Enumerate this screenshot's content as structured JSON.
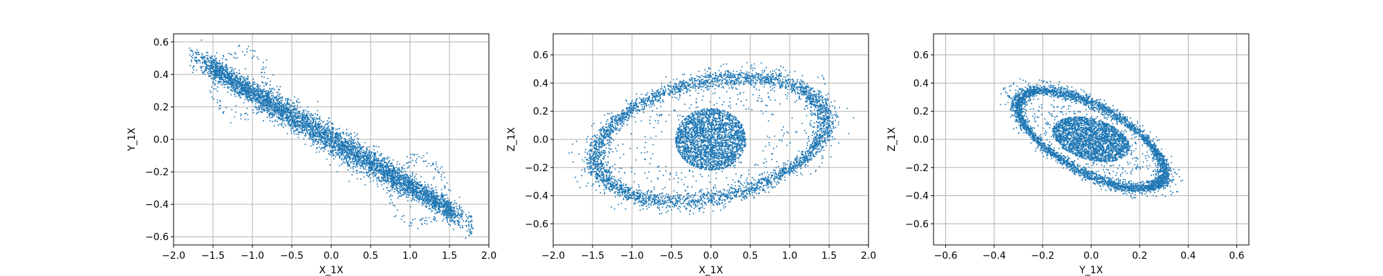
{
  "chart_data": [
    {
      "type": "scatter",
      "xlabel": "X_1X",
      "ylabel": "Y_1X",
      "xlim": [
        -2.0,
        2.0
      ],
      "ylim": [
        -0.65,
        0.65
      ],
      "xticks": [
        "−2.0",
        "−1.5",
        "−1.0",
        "−0.5",
        "0.0",
        "0.5",
        "1.0",
        "1.5",
        "2.0"
      ],
      "xtick_values": [
        -2.0,
        -1.5,
        -1.0,
        -0.5,
        0.0,
        0.5,
        1.0,
        1.5,
        2.0
      ],
      "yticks": [
        "−0.6",
        "−0.4",
        "−0.2",
        "0.0",
        "0.2",
        "0.4",
        "0.6"
      ],
      "ytick_values": [
        -0.6,
        -0.4,
        -0.2,
        0.0,
        0.2,
        0.4,
        0.6
      ],
      "grid": true,
      "color": "#1f77b4",
      "structure": "elongated diagonal band from (-1.8, 0.52) to (1.8, -0.53), dense core near origin",
      "outline_points": [
        [
          -1.8,
          0.52
        ],
        [
          -1.3,
          0.38
        ],
        [
          -0.5,
          0.12
        ],
        [
          0.0,
          0.0
        ],
        [
          0.5,
          -0.12
        ],
        [
          1.0,
          -0.27
        ],
        [
          1.5,
          -0.42
        ],
        [
          1.8,
          -0.53
        ]
      ]
    },
    {
      "type": "scatter",
      "xlabel": "X_1X",
      "ylabel": "Z_1X",
      "xlim": [
        -2.0,
        2.0
      ],
      "ylim": [
        -0.75,
        0.75
      ],
      "xticks": [
        "−2.0",
        "−1.5",
        "−1.0",
        "−0.5",
        "0.0",
        "0.5",
        "1.0",
        "1.5",
        "2.0"
      ],
      "xtick_values": [
        -2.0,
        -1.5,
        -1.0,
        -0.5,
        0.0,
        0.5,
        1.0,
        1.5,
        2.0
      ],
      "yticks": [
        "−0.6",
        "−0.4",
        "−0.2",
        "0.0",
        "0.2",
        "0.4",
        "0.6"
      ],
      "ytick_values": [
        -0.6,
        -0.4,
        -0.2,
        0.0,
        0.2,
        0.4,
        0.6
      ],
      "grid": true,
      "color": "#1f77b4",
      "structure": "tilted elliptical ring around a dense central disk",
      "ring": {
        "center": [
          0.0,
          0.0
        ],
        "semi_axis_x": 1.45,
        "semi_axis_y": 0.42,
        "tilt": 0.2
      },
      "core": {
        "center": [
          0.0,
          0.0
        ],
        "radius_x": 0.45,
        "radius_y": 0.22
      }
    },
    {
      "type": "scatter",
      "xlabel": "Y_1X",
      "ylabel": "Z_1X",
      "xlim": [
        -0.65,
        0.65
      ],
      "ylim": [
        -0.75,
        0.75
      ],
      "xticks": [
        "−0.6",
        "−0.4",
        "−0.2",
        "0.0",
        "0.2",
        "0.4",
        "0.6"
      ],
      "xtick_values": [
        -0.6,
        -0.4,
        -0.2,
        0.0,
        0.2,
        0.4,
        0.6
      ],
      "yticks": [
        "−0.6",
        "−0.4",
        "−0.2",
        "0.0",
        "0.2",
        "0.4",
        "0.6"
      ],
      "ytick_values": [
        -0.6,
        -0.4,
        -0.2,
        0.0,
        0.2,
        0.4,
        0.6
      ],
      "grid": true,
      "color": "#1f77b4",
      "structure": "tilted elliptical ring (descending to the right) around a dense central core",
      "ring": {
        "center": [
          0.0,
          0.0
        ],
        "semi_axis_x": 0.42,
        "semi_axis_y": 0.42,
        "tilt": -0.75
      },
      "core": {
        "center": [
          0.0,
          0.0
        ],
        "radius_x": 0.16,
        "radius_y": 0.15
      }
    }
  ]
}
